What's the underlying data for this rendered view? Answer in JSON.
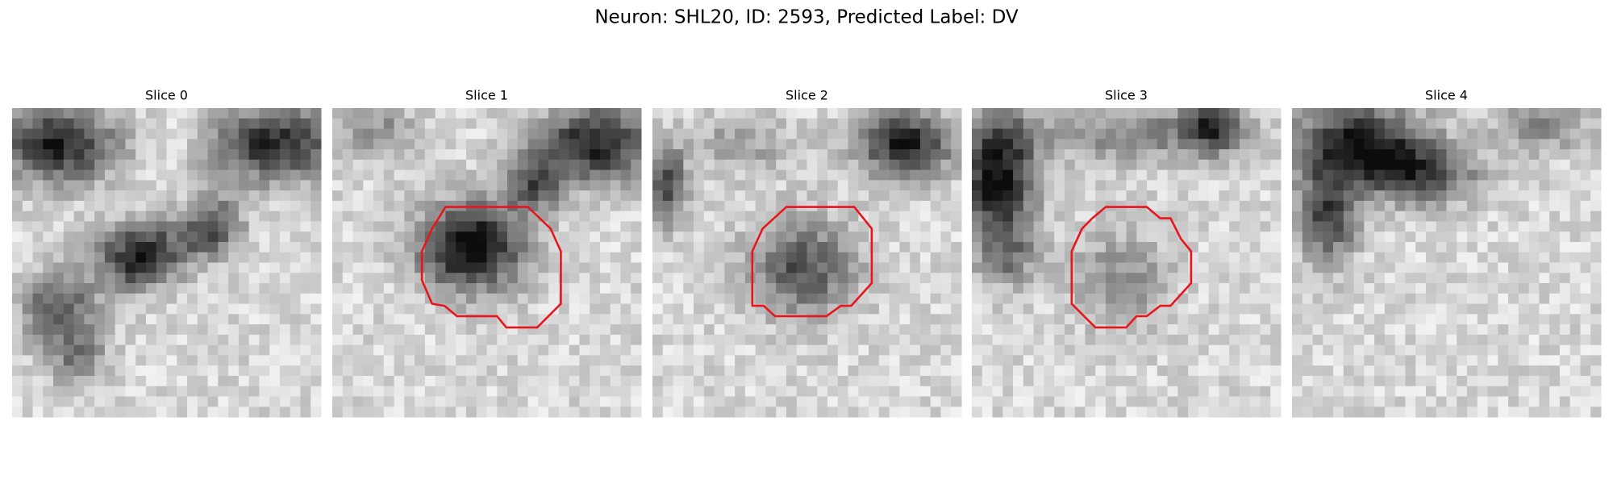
{
  "figure": {
    "title": "Neuron: SHL20, ID: 2593, Predicted Label: DV",
    "panels": [
      {
        "title": "Slice 0"
      },
      {
        "title": "Slice 1"
      },
      {
        "title": "Slice 2"
      },
      {
        "title": "Slice 3"
      },
      {
        "title": "Slice 4"
      }
    ]
  }
}
